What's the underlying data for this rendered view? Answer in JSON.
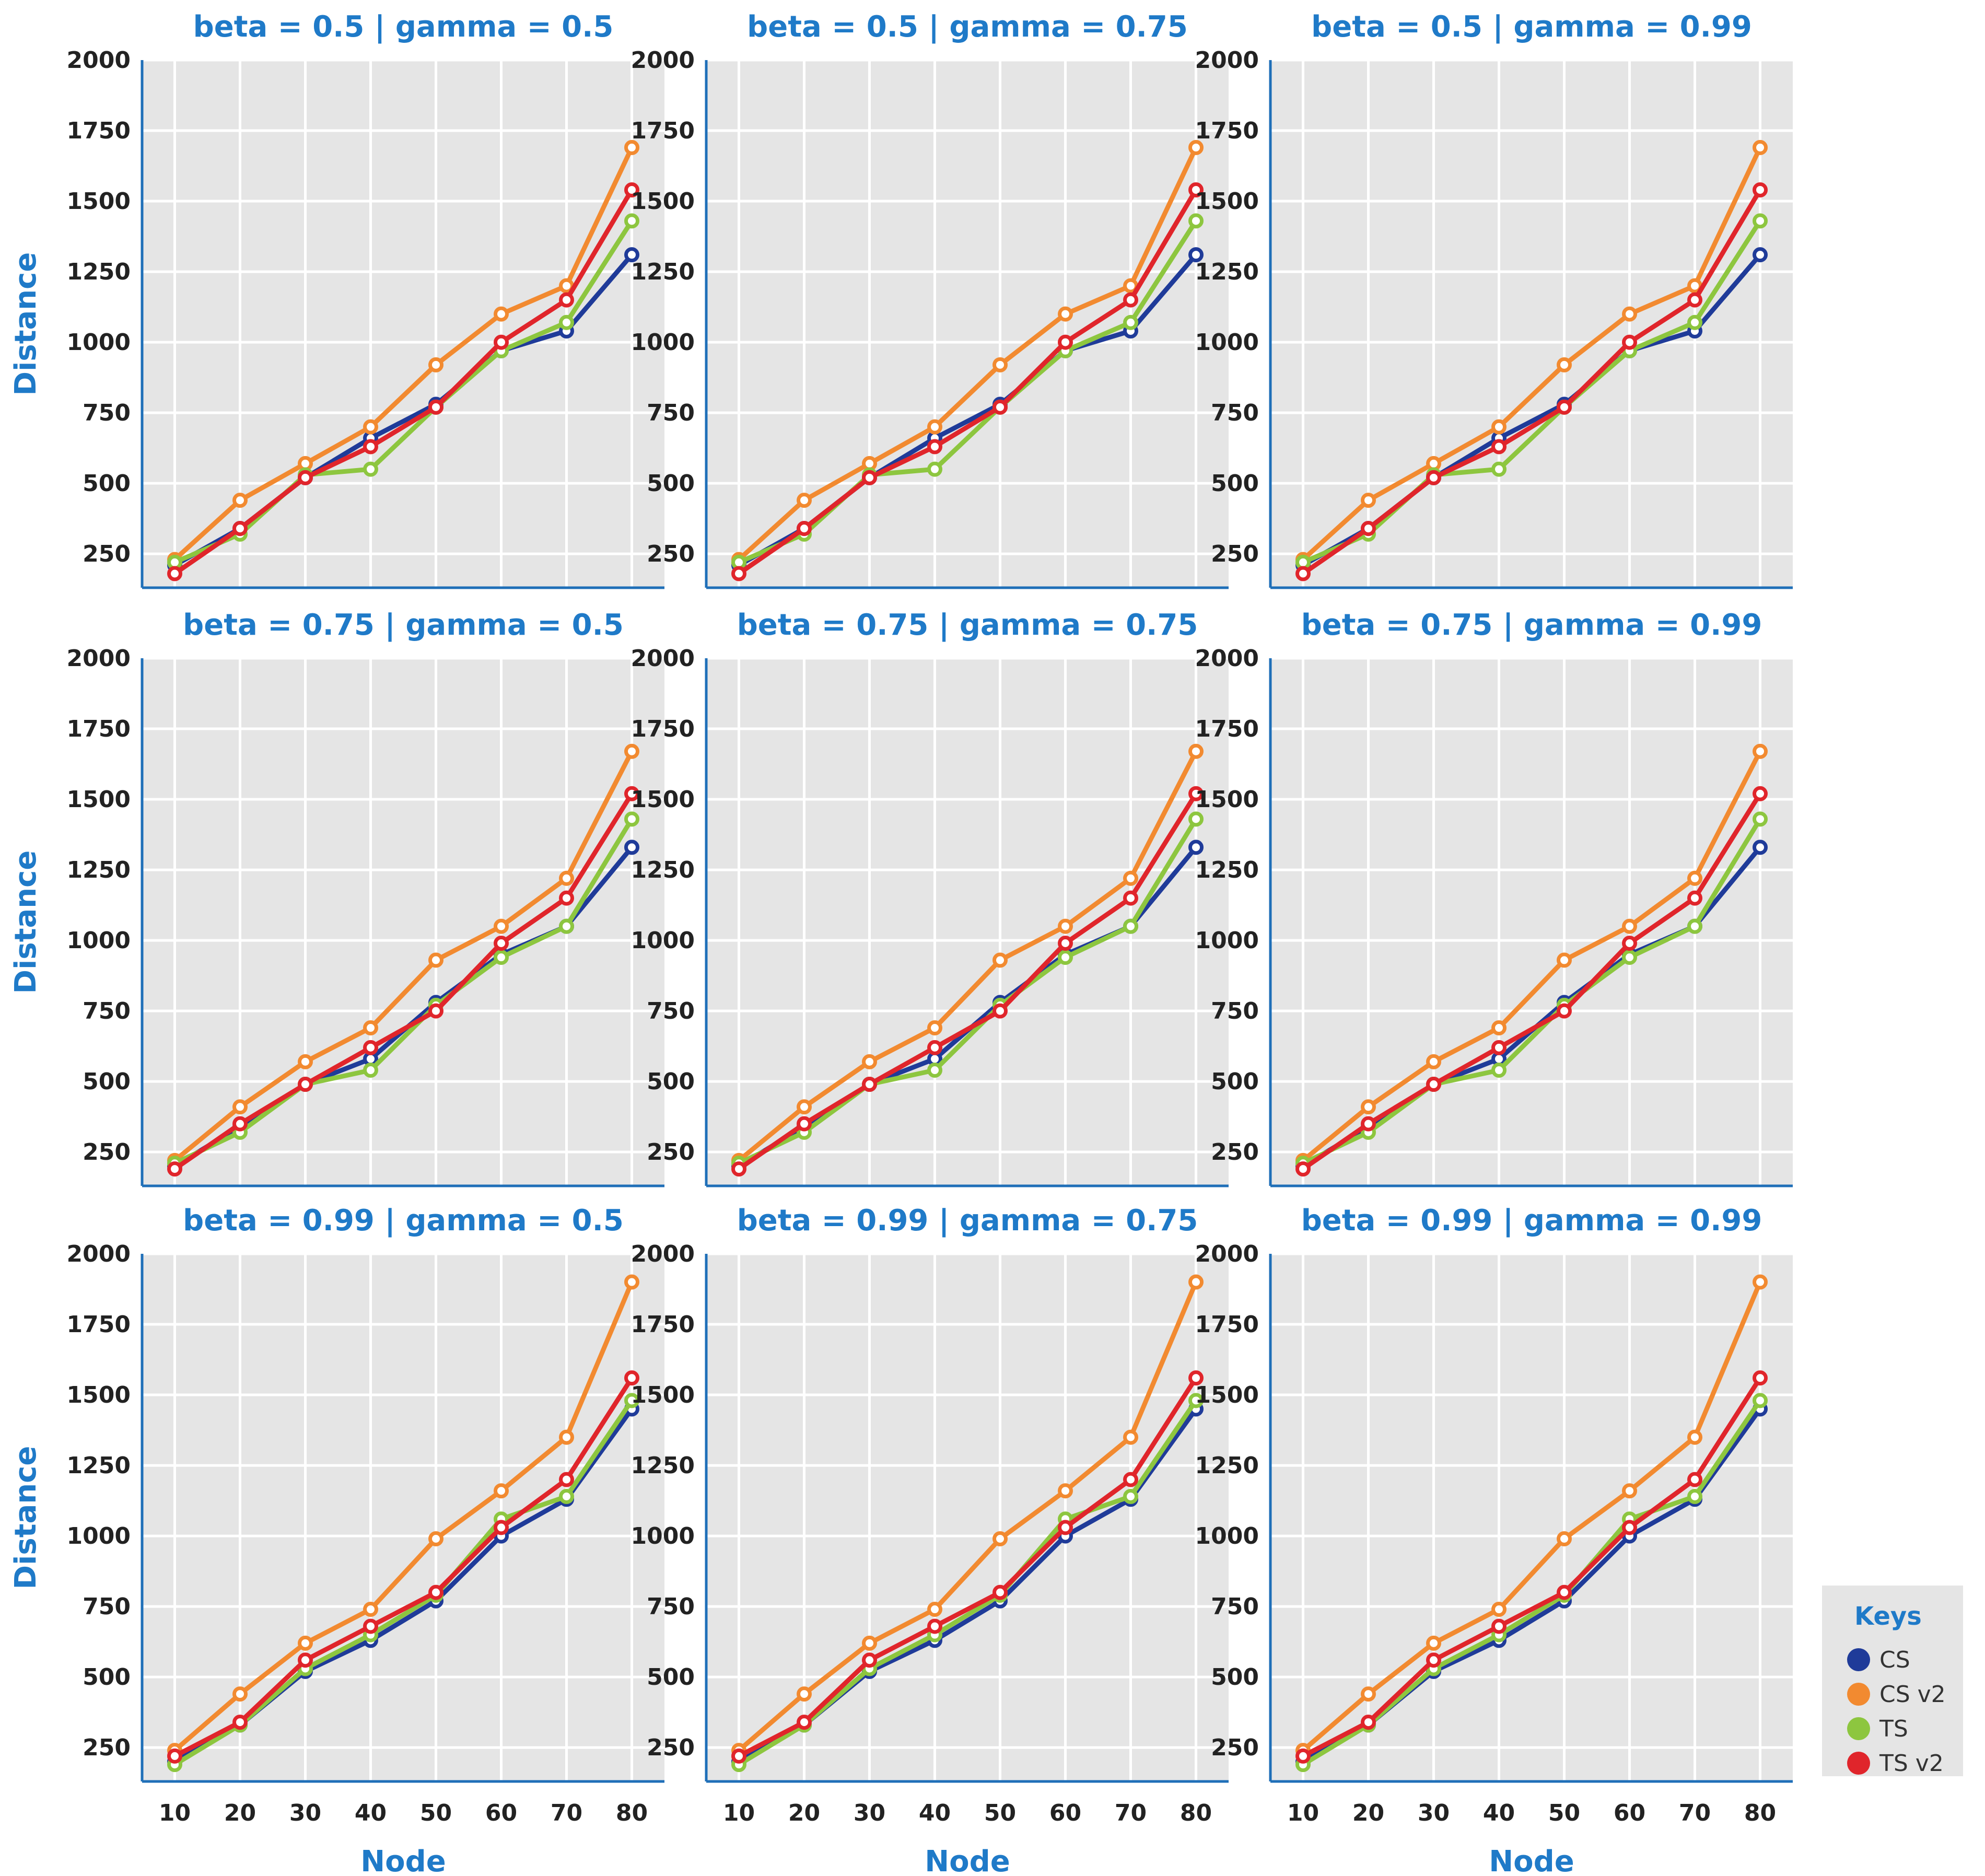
{
  "chart_data": {
    "type": "line",
    "layout": "3x3 facet grid",
    "xlabel": "Node",
    "ylabel": "Distance",
    "x": [
      10,
      20,
      30,
      40,
      50,
      60,
      70,
      80
    ],
    "x_tick_labels": [
      "10",
      "20",
      "30",
      "40",
      "50",
      "60",
      "70",
      "80"
    ],
    "y_ticks": [
      250,
      500,
      750,
      1000,
      1250,
      1500,
      1750,
      2000
    ],
    "y_tick_labels": [
      "250",
      "500",
      "750",
      "1000",
      "1250",
      "1500",
      "1750",
      "2000"
    ],
    "ylim": [
      130,
      2000
    ],
    "xlim": [
      5,
      85
    ],
    "grid": true,
    "legend": {
      "title": "Keys",
      "placement": "bottom-right",
      "entries": [
        {
          "name": "CS",
          "color": "#1f3b99"
        },
        {
          "name": "CS v2",
          "color": "#f28a30"
        },
        {
          "name": "TS",
          "color": "#8dc63f"
        },
        {
          "name": "TS v2",
          "color": "#e0252b"
        }
      ]
    },
    "panels": [
      {
        "title": "beta = 0.5 | gamma = 0.5",
        "series": [
          {
            "name": "CS",
            "values": [
              210,
              340,
              520,
              660,
              780,
              970,
              1040,
              1310
            ]
          },
          {
            "name": "CS v2",
            "values": [
              230,
              440,
              570,
              700,
              920,
              1100,
              1200,
              1690
            ]
          },
          {
            "name": "TS",
            "values": [
              220,
              320,
              530,
              550,
              770,
              970,
              1070,
              1430
            ]
          },
          {
            "name": "TS v2",
            "values": [
              180,
              340,
              520,
              630,
              770,
              1000,
              1150,
              1540
            ]
          }
        ]
      },
      {
        "title": "beta = 0.5 | gamma = 0.75",
        "series": [
          {
            "name": "CS",
            "values": [
              210,
              340,
              520,
              660,
              780,
              970,
              1040,
              1310
            ]
          },
          {
            "name": "CS v2",
            "values": [
              230,
              440,
              570,
              700,
              920,
              1100,
              1200,
              1690
            ]
          },
          {
            "name": "TS",
            "values": [
              220,
              320,
              530,
              550,
              770,
              970,
              1070,
              1430
            ]
          },
          {
            "name": "TS v2",
            "values": [
              180,
              340,
              520,
              630,
              770,
              1000,
              1150,
              1540
            ]
          }
        ]
      },
      {
        "title": "beta = 0.5 | gamma = 0.99",
        "series": [
          {
            "name": "CS",
            "values": [
              210,
              340,
              520,
              660,
              780,
              970,
              1040,
              1310
            ]
          },
          {
            "name": "CS v2",
            "values": [
              230,
              440,
              570,
              700,
              920,
              1100,
              1200,
              1690
            ]
          },
          {
            "name": "TS",
            "values": [
              220,
              320,
              530,
              550,
              770,
              970,
              1070,
              1430
            ]
          },
          {
            "name": "TS v2",
            "values": [
              180,
              340,
              520,
              630,
              770,
              1000,
              1150,
              1540
            ]
          }
        ]
      },
      {
        "title": "beta = 0.75 | gamma = 0.5",
        "series": [
          {
            "name": "CS",
            "values": [
              200,
              340,
              490,
              580,
              780,
              950,
              1050,
              1330
            ]
          },
          {
            "name": "CS v2",
            "values": [
              220,
              410,
              570,
              690,
              930,
              1050,
              1220,
              1670
            ]
          },
          {
            "name": "TS",
            "values": [
              210,
              320,
              490,
              540,
              770,
              940,
              1050,
              1430
            ]
          },
          {
            "name": "TS v2",
            "values": [
              190,
              350,
              490,
              620,
              750,
              990,
              1150,
              1520
            ]
          }
        ]
      },
      {
        "title": "beta = 0.75 | gamma = 0.75",
        "series": [
          {
            "name": "CS",
            "values": [
              200,
              340,
              490,
              580,
              780,
              950,
              1050,
              1330
            ]
          },
          {
            "name": "CS v2",
            "values": [
              220,
              410,
              570,
              690,
              930,
              1050,
              1220,
              1670
            ]
          },
          {
            "name": "TS",
            "values": [
              210,
              320,
              490,
              540,
              770,
              940,
              1050,
              1430
            ]
          },
          {
            "name": "TS v2",
            "values": [
              190,
              350,
              490,
              620,
              750,
              990,
              1150,
              1520
            ]
          }
        ]
      },
      {
        "title": "beta = 0.75 | gamma = 0.99",
        "series": [
          {
            "name": "CS",
            "values": [
              200,
              340,
              490,
              580,
              780,
              950,
              1050,
              1330
            ]
          },
          {
            "name": "CS v2",
            "values": [
              220,
              410,
              570,
              690,
              930,
              1050,
              1220,
              1670
            ]
          },
          {
            "name": "TS",
            "values": [
              210,
              320,
              490,
              540,
              770,
              940,
              1050,
              1430
            ]
          },
          {
            "name": "TS v2",
            "values": [
              190,
              350,
              490,
              620,
              750,
              990,
              1150,
              1520
            ]
          }
        ]
      },
      {
        "title": "beta = 0.99 | gamma = 0.5",
        "series": [
          {
            "name": "CS",
            "values": [
              200,
              330,
              520,
              630,
              770,
              1000,
              1130,
              1450
            ]
          },
          {
            "name": "CS v2",
            "values": [
              240,
              440,
              620,
              740,
              990,
              1160,
              1350,
              1900
            ]
          },
          {
            "name": "TS",
            "values": [
              190,
              330,
              530,
              650,
              790,
              1060,
              1140,
              1480
            ]
          },
          {
            "name": "TS v2",
            "values": [
              220,
              340,
              560,
              680,
              800,
              1030,
              1200,
              1560
            ]
          }
        ]
      },
      {
        "title": "beta = 0.99 | gamma = 0.75",
        "series": [
          {
            "name": "CS",
            "values": [
              200,
              330,
              520,
              630,
              770,
              1000,
              1130,
              1450
            ]
          },
          {
            "name": "CS v2",
            "values": [
              240,
              440,
              620,
              740,
              990,
              1160,
              1350,
              1900
            ]
          },
          {
            "name": "TS",
            "values": [
              190,
              330,
              530,
              650,
              790,
              1060,
              1140,
              1480
            ]
          },
          {
            "name": "TS v2",
            "values": [
              220,
              340,
              560,
              680,
              800,
              1030,
              1200,
              1560
            ]
          }
        ]
      },
      {
        "title": "beta = 0.99 | gamma = 0.99",
        "series": [
          {
            "name": "CS",
            "values": [
              200,
              330,
              520,
              630,
              770,
              1000,
              1130,
              1450
            ]
          },
          {
            "name": "CS v2",
            "values": [
              240,
              440,
              620,
              740,
              990,
              1160,
              1350,
              1900
            ]
          },
          {
            "name": "TS",
            "values": [
              190,
              330,
              530,
              650,
              790,
              1060,
              1140,
              1480
            ]
          },
          {
            "name": "TS v2",
            "values": [
              220,
              340,
              560,
              680,
              800,
              1030,
              1200,
              1560
            ]
          }
        ]
      }
    ]
  }
}
